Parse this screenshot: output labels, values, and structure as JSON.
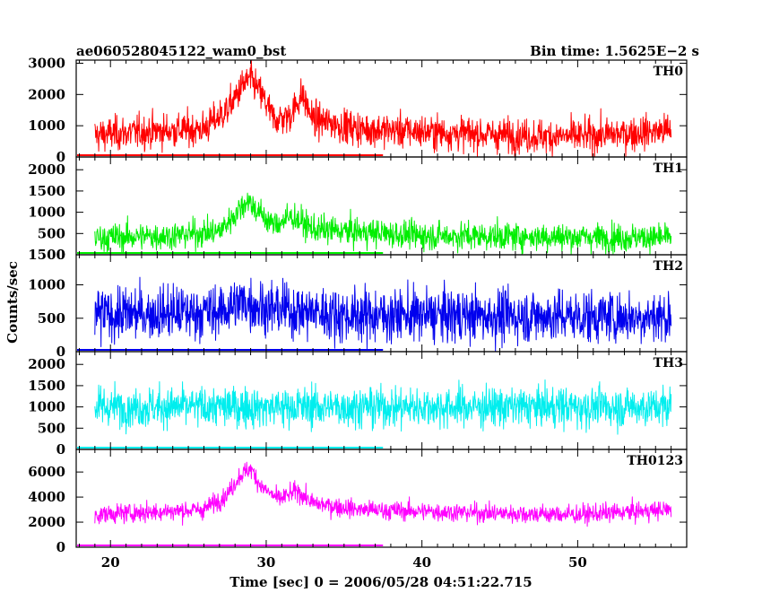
{
  "header": {
    "title": "ae060528045122_wam0_bst",
    "bin_time": "Bin time: 1.5625E−2 s"
  },
  "chart_data": {
    "type": "line",
    "xlabel": "Time [sec] 0 = 2006/05/28 04:51:22.715",
    "ylabel": "Counts/sec",
    "xlim": [
      17.8,
      57
    ],
    "x_ticks": [
      20,
      30,
      40,
      50
    ],
    "x_tick_labels": [
      "20",
      "30",
      "40",
      "50"
    ],
    "data_x_range": [
      19,
      56
    ],
    "baseline_end": 37.5,
    "panels": [
      {
        "name": "TH0",
        "color": "#ff0000",
        "ylim": [
          0,
          3100
        ],
        "y_ticks": [
          0,
          1000,
          2000,
          3000
        ],
        "y_tick_labels": [
          "0",
          "1000",
          "2000",
          "3000"
        ],
        "trend": [
          [
            19,
            700
          ],
          [
            22,
            800
          ],
          [
            26,
            900
          ],
          [
            27.5,
            1500
          ],
          [
            28.5,
            2300
          ],
          [
            29,
            2500
          ],
          [
            29.7,
            2000
          ],
          [
            30.5,
            1200
          ],
          [
            31.5,
            1300
          ],
          [
            32.3,
            2000
          ],
          [
            33,
            1200
          ],
          [
            36,
            900
          ],
          [
            45,
            700
          ],
          [
            50,
            650
          ],
          [
            56,
            850
          ]
        ],
        "noise": 380
      },
      {
        "name": "TH1",
        "color": "#00ee00",
        "ylim": [
          0,
          2300
        ],
        "y_ticks": [
          0,
          500,
          1000,
          1500,
          2000
        ],
        "y_tick_labels": [
          "0",
          "500",
          "1000",
          "1500",
          "2000"
        ],
        "trend": [
          [
            19,
            400
          ],
          [
            24,
            450
          ],
          [
            27,
            550
          ],
          [
            28,
            950
          ],
          [
            28.8,
            1300
          ],
          [
            29.5,
            1000
          ],
          [
            30.5,
            700
          ],
          [
            31.7,
            900
          ],
          [
            33,
            600
          ],
          [
            40,
            450
          ],
          [
            56,
            400
          ]
        ],
        "noise": 230
      },
      {
        "name": "TH2",
        "color": "#0000ee",
        "ylim": [
          0,
          1450
        ],
        "y_ticks": [
          0,
          500,
          1000
        ],
        "y_tick_labels": [
          "0",
          "500",
          "1000"
        ],
        "top_tick_label": "1500",
        "trend": [
          [
            19,
            550
          ],
          [
            27,
            600
          ],
          [
            28.5,
            750
          ],
          [
            30,
            650
          ],
          [
            35,
            550
          ],
          [
            56,
            520
          ]
        ],
        "noise": 280
      },
      {
        "name": "TH3",
        "color": "#00eeee",
        "ylim": [
          0,
          2300
        ],
        "y_ticks": [
          0,
          500,
          1000,
          1500,
          2000
        ],
        "y_tick_labels": [
          "0",
          "500",
          "1000",
          "1500",
          "2000"
        ],
        "trend": [
          [
            19,
            1000
          ],
          [
            56,
            1000
          ]
        ],
        "noise": 330
      },
      {
        "name": "TH0123",
        "color": "#ff00ff",
        "ylim": [
          0,
          7800
        ],
        "y_ticks": [
          0,
          2000,
          4000,
          6000
        ],
        "y_tick_labels": [
          "0",
          "2000",
          "4000",
          "6000"
        ],
        "trend": [
          [
            19,
            2600
          ],
          [
            26,
            3000
          ],
          [
            27.5,
            4200
          ],
          [
            28.3,
            5700
          ],
          [
            29,
            6300
          ],
          [
            29.7,
            4800
          ],
          [
            30.8,
            3800
          ],
          [
            32,
            4500
          ],
          [
            33,
            3500
          ],
          [
            36,
            3000
          ],
          [
            45,
            2700
          ],
          [
            50,
            2600
          ],
          [
            56,
            3000
          ]
        ],
        "noise": 520
      }
    ]
  }
}
